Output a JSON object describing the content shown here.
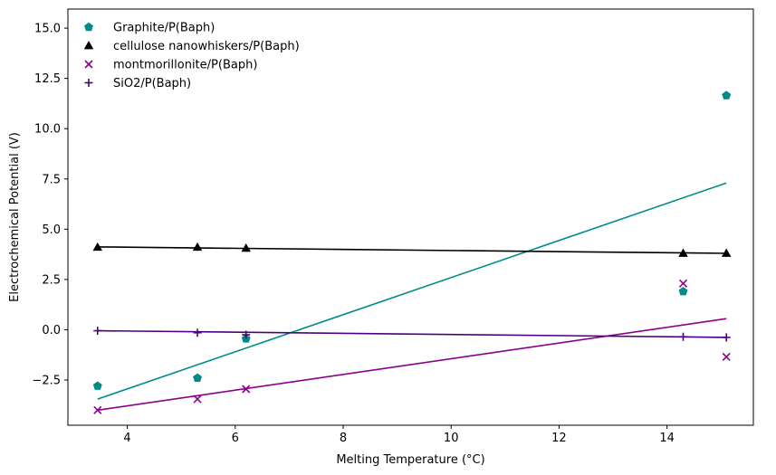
{
  "chart_data": {
    "type": "scatter",
    "title": "",
    "xlabel": "Melting Temperature (°C)",
    "ylabel": "Electrochemical Potential (V)",
    "xlim": [
      2.9,
      15.6
    ],
    "ylim": [
      -4.75,
      15.95
    ],
    "xticks": [
      4,
      6,
      8,
      10,
      12,
      14
    ],
    "yticks": [
      -2.5,
      0.0,
      2.5,
      5.0,
      7.5,
      10.0,
      12.5,
      15.0
    ],
    "ytick_labels": [
      "−2.5",
      "0.0",
      "2.5",
      "5.0",
      "7.5",
      "10.0",
      "12.5",
      "15.0"
    ],
    "grid": false,
    "legend_position": "top-left",
    "series": [
      {
        "name": "Graphite/P(Baph)",
        "color": "#008b8b",
        "marker": "pentagon",
        "x": [
          3.45,
          5.3,
          6.2,
          14.3,
          15.1
        ],
        "y": [
          -2.8,
          -2.4,
          -0.45,
          1.9,
          11.65
        ],
        "fit": {
          "x": [
            3.45,
            15.1
          ],
          "y": [
            -3.45,
            7.3
          ]
        }
      },
      {
        "name": "cellulose nanowhiskers/P(Baph)",
        "color": "#000000",
        "marker": "triangle",
        "x": [
          3.45,
          5.3,
          6.2,
          14.3,
          15.1
        ],
        "y": [
          4.1,
          4.1,
          4.05,
          3.8,
          3.8
        ],
        "fit": {
          "x": [
            3.45,
            15.1
          ],
          "y": [
            4.12,
            3.8
          ]
        }
      },
      {
        "name": "montmorillonite/P(Baph)",
        "color": "#8b008b",
        "marker": "x",
        "x": [
          3.45,
          5.3,
          6.2,
          14.3,
          15.1
        ],
        "y": [
          -4.0,
          -3.45,
          -2.95,
          2.3,
          -1.35
        ],
        "fit": {
          "x": [
            3.45,
            15.1
          ],
          "y": [
            -4.0,
            0.55
          ]
        }
      },
      {
        "name": "SiO2/P(Baph)",
        "color": "#4b0082",
        "marker": "plus",
        "x": [
          3.45,
          5.3,
          6.2,
          14.3,
          15.1
        ],
        "y": [
          -0.05,
          -0.15,
          -0.25,
          -0.35,
          -0.38
        ],
        "fit": {
          "x": [
            3.45,
            15.1
          ],
          "y": [
            -0.05,
            -0.38
          ]
        }
      }
    ]
  }
}
